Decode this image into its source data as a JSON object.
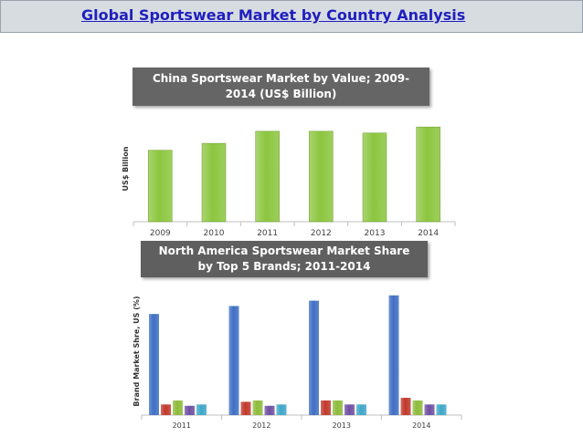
{
  "header": {
    "title": "Global Sportswear Market by Country Analysis"
  },
  "colors": {
    "bar_green": "#8cc63f",
    "blue": "#3f6fc4",
    "red": "#c0392b",
    "green": "#8dbb3c",
    "purple": "#6f4fa3",
    "teal": "#3fa7c9"
  },
  "chart_data": [
    {
      "type": "bar",
      "title": "China Sportswear Market by Value; 2009-2014 (US$ Billion)",
      "xlabel": "",
      "ylabel": "US$ Billion",
      "categories": [
        "2009",
        "2010",
        "2011",
        "2012",
        "2013",
        "2014"
      ],
      "values": [
        83,
        91,
        105,
        105,
        103,
        110
      ],
      "ylim": [
        0,
        125
      ],
      "grid": false,
      "legend": "none"
    },
    {
      "type": "bar",
      "title": "North America Sportswear Market Share by Top 5 Brands; 2011-2014",
      "xlabel": "",
      "ylabel": "Brand Market Shre, US (%)",
      "categories": [
        "2011",
        "2012",
        "2013",
        "2014"
      ],
      "series": [
        {
          "values": [
            38,
            41,
            43,
            45
          ]
        },
        {
          "values": [
            4,
            5,
            5.5,
            6.5
          ]
        },
        {
          "values": [
            5.5,
            5.5,
            5.5,
            5.5
          ]
        },
        {
          "values": [
            3.5,
            3.5,
            4,
            4
          ]
        },
        {
          "values": [
            4,
            4,
            4,
            4
          ]
        }
      ],
      "ylim": [
        0,
        48
      ],
      "grid": false,
      "legend": "none"
    }
  ]
}
